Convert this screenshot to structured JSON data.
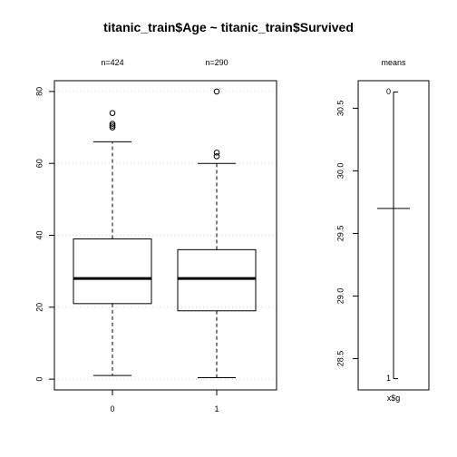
{
  "chart_data": [
    {
      "type": "boxplot",
      "title": "titanic_train$Age ~ titanic_train$Survived",
      "categories": [
        "0",
        "1"
      ],
      "counts": [
        "n=424",
        "n=290"
      ],
      "boxes": [
        {
          "category": "0",
          "whisker_low": 1,
          "q1": 21,
          "median": 28,
          "q3": 39,
          "whisker_high": 66,
          "outliers": [
            70,
            70.5,
            71,
            74
          ]
        },
        {
          "category": "1",
          "whisker_low": 0.42,
          "q1": 19,
          "median": 28,
          "q3": 36,
          "whisker_high": 60,
          "outliers": [
            62,
            63,
            80
          ]
        }
      ],
      "yticks": [
        "0",
        "20",
        "40",
        "60",
        "80"
      ],
      "ylim": [
        -3,
        83
      ],
      "grid": true
    },
    {
      "type": "means",
      "title": "means",
      "xlabel": "x$g",
      "markers": [
        {
          "label": "0",
          "value": 30.63
        },
        {
          "label": "1",
          "value": 28.34
        }
      ],
      "overall_mean": 29.7,
      "yticks": [
        "28.5",
        "29.0",
        "29.5",
        "30.0",
        "30.5"
      ],
      "ylim": [
        28.25,
        30.72
      ]
    }
  ],
  "colors": {
    "grid": "#d3d3d3",
    "ink": "#000000"
  }
}
